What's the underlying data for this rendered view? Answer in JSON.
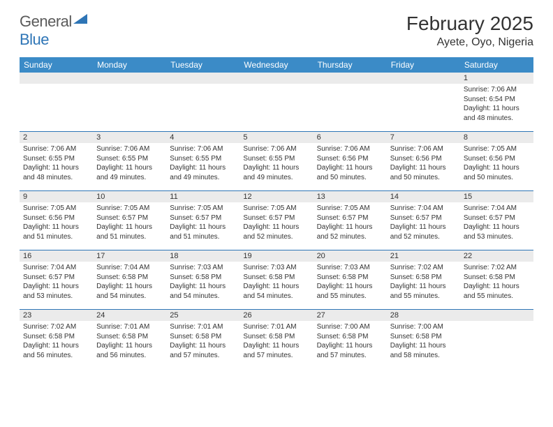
{
  "logo": {
    "general": "General",
    "blue": "Blue"
  },
  "title": "February 2025",
  "location": "Ayete, Oyo, Nigeria",
  "colors": {
    "header_bar": "#3b8bc7",
    "divider": "#2e75b6",
    "daynum_bg": "#ebebeb",
    "text": "#333333",
    "logo_gray": "#5a5a5a",
    "logo_blue": "#2e75b6",
    "background": "#ffffff"
  },
  "fonts": {
    "title_pt": 28,
    "location_pt": 16,
    "dow_pt": 12,
    "body_pt": 10
  },
  "dow": [
    "Sunday",
    "Monday",
    "Tuesday",
    "Wednesday",
    "Thursday",
    "Friday",
    "Saturday"
  ],
  "weeks": [
    [
      {
        "n": "",
        "sr": "",
        "ss": "",
        "dl": ""
      },
      {
        "n": "",
        "sr": "",
        "ss": "",
        "dl": ""
      },
      {
        "n": "",
        "sr": "",
        "ss": "",
        "dl": ""
      },
      {
        "n": "",
        "sr": "",
        "ss": "",
        "dl": ""
      },
      {
        "n": "",
        "sr": "",
        "ss": "",
        "dl": ""
      },
      {
        "n": "",
        "sr": "",
        "ss": "",
        "dl": ""
      },
      {
        "n": "1",
        "sr": "Sunrise: 7:06 AM",
        "ss": "Sunset: 6:54 PM",
        "dl": "Daylight: 11 hours and 48 minutes."
      }
    ],
    [
      {
        "n": "2",
        "sr": "Sunrise: 7:06 AM",
        "ss": "Sunset: 6:55 PM",
        "dl": "Daylight: 11 hours and 48 minutes."
      },
      {
        "n": "3",
        "sr": "Sunrise: 7:06 AM",
        "ss": "Sunset: 6:55 PM",
        "dl": "Daylight: 11 hours and 49 minutes."
      },
      {
        "n": "4",
        "sr": "Sunrise: 7:06 AM",
        "ss": "Sunset: 6:55 PM",
        "dl": "Daylight: 11 hours and 49 minutes."
      },
      {
        "n": "5",
        "sr": "Sunrise: 7:06 AM",
        "ss": "Sunset: 6:55 PM",
        "dl": "Daylight: 11 hours and 49 minutes."
      },
      {
        "n": "6",
        "sr": "Sunrise: 7:06 AM",
        "ss": "Sunset: 6:56 PM",
        "dl": "Daylight: 11 hours and 50 minutes."
      },
      {
        "n": "7",
        "sr": "Sunrise: 7:06 AM",
        "ss": "Sunset: 6:56 PM",
        "dl": "Daylight: 11 hours and 50 minutes."
      },
      {
        "n": "8",
        "sr": "Sunrise: 7:05 AM",
        "ss": "Sunset: 6:56 PM",
        "dl": "Daylight: 11 hours and 50 minutes."
      }
    ],
    [
      {
        "n": "9",
        "sr": "Sunrise: 7:05 AM",
        "ss": "Sunset: 6:56 PM",
        "dl": "Daylight: 11 hours and 51 minutes."
      },
      {
        "n": "10",
        "sr": "Sunrise: 7:05 AM",
        "ss": "Sunset: 6:57 PM",
        "dl": "Daylight: 11 hours and 51 minutes."
      },
      {
        "n": "11",
        "sr": "Sunrise: 7:05 AM",
        "ss": "Sunset: 6:57 PM",
        "dl": "Daylight: 11 hours and 51 minutes."
      },
      {
        "n": "12",
        "sr": "Sunrise: 7:05 AM",
        "ss": "Sunset: 6:57 PM",
        "dl": "Daylight: 11 hours and 52 minutes."
      },
      {
        "n": "13",
        "sr": "Sunrise: 7:05 AM",
        "ss": "Sunset: 6:57 PM",
        "dl": "Daylight: 11 hours and 52 minutes."
      },
      {
        "n": "14",
        "sr": "Sunrise: 7:04 AM",
        "ss": "Sunset: 6:57 PM",
        "dl": "Daylight: 11 hours and 52 minutes."
      },
      {
        "n": "15",
        "sr": "Sunrise: 7:04 AM",
        "ss": "Sunset: 6:57 PM",
        "dl": "Daylight: 11 hours and 53 minutes."
      }
    ],
    [
      {
        "n": "16",
        "sr": "Sunrise: 7:04 AM",
        "ss": "Sunset: 6:57 PM",
        "dl": "Daylight: 11 hours and 53 minutes."
      },
      {
        "n": "17",
        "sr": "Sunrise: 7:04 AM",
        "ss": "Sunset: 6:58 PM",
        "dl": "Daylight: 11 hours and 54 minutes."
      },
      {
        "n": "18",
        "sr": "Sunrise: 7:03 AM",
        "ss": "Sunset: 6:58 PM",
        "dl": "Daylight: 11 hours and 54 minutes."
      },
      {
        "n": "19",
        "sr": "Sunrise: 7:03 AM",
        "ss": "Sunset: 6:58 PM",
        "dl": "Daylight: 11 hours and 54 minutes."
      },
      {
        "n": "20",
        "sr": "Sunrise: 7:03 AM",
        "ss": "Sunset: 6:58 PM",
        "dl": "Daylight: 11 hours and 55 minutes."
      },
      {
        "n": "21",
        "sr": "Sunrise: 7:02 AM",
        "ss": "Sunset: 6:58 PM",
        "dl": "Daylight: 11 hours and 55 minutes."
      },
      {
        "n": "22",
        "sr": "Sunrise: 7:02 AM",
        "ss": "Sunset: 6:58 PM",
        "dl": "Daylight: 11 hours and 55 minutes."
      }
    ],
    [
      {
        "n": "23",
        "sr": "Sunrise: 7:02 AM",
        "ss": "Sunset: 6:58 PM",
        "dl": "Daylight: 11 hours and 56 minutes."
      },
      {
        "n": "24",
        "sr": "Sunrise: 7:01 AM",
        "ss": "Sunset: 6:58 PM",
        "dl": "Daylight: 11 hours and 56 minutes."
      },
      {
        "n": "25",
        "sr": "Sunrise: 7:01 AM",
        "ss": "Sunset: 6:58 PM",
        "dl": "Daylight: 11 hours and 57 minutes."
      },
      {
        "n": "26",
        "sr": "Sunrise: 7:01 AM",
        "ss": "Sunset: 6:58 PM",
        "dl": "Daylight: 11 hours and 57 minutes."
      },
      {
        "n": "27",
        "sr": "Sunrise: 7:00 AM",
        "ss": "Sunset: 6:58 PM",
        "dl": "Daylight: 11 hours and 57 minutes."
      },
      {
        "n": "28",
        "sr": "Sunrise: 7:00 AM",
        "ss": "Sunset: 6:58 PM",
        "dl": "Daylight: 11 hours and 58 minutes."
      },
      {
        "n": "",
        "sr": "",
        "ss": "",
        "dl": ""
      }
    ]
  ]
}
